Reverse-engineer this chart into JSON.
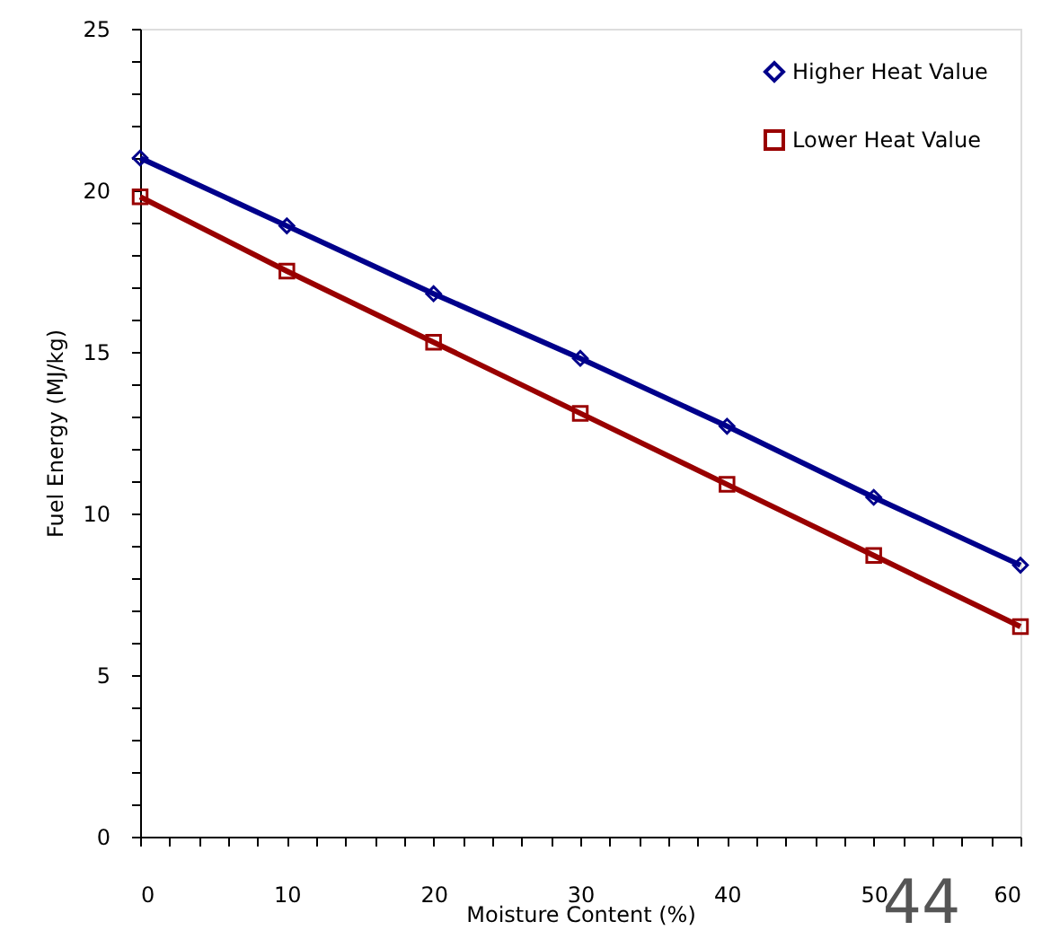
{
  "chart_data": {
    "type": "line",
    "xlabel": "Moisture Content (%)",
    "ylabel": "Fuel Energy (MJ/kg)",
    "x": [
      0,
      10,
      20,
      30,
      40,
      50,
      60
    ],
    "series": [
      {
        "name": "Higher Heat Value",
        "color": "#00008b",
        "marker": "diamond",
        "values": [
          21.0,
          18.9,
          16.8,
          14.8,
          12.7,
          10.5,
          8.4
        ]
      },
      {
        "name": "Lower Heat Value",
        "color": "#990000",
        "marker": "square",
        "values": [
          19.8,
          17.5,
          15.3,
          13.1,
          10.9,
          8.7,
          6.5
        ]
      }
    ],
    "xlim": [
      0,
      60
    ],
    "ylim": [
      0,
      25
    ],
    "xticks": [
      0,
      {
        "value": 2,
        "label": null
      },
      {
        "value": 4,
        "label": null
      },
      {
        "value": 6,
        "label": null
      },
      {
        "value": 8,
        "label": null
      },
      10,
      {
        "value": 12,
        "label": null
      },
      {
        "value": 14,
        "label": null
      },
      {
        "value": 16,
        "label": null
      },
      {
        "value": 18,
        "label": null
      },
      20,
      {
        "value": 22,
        "label": null
      },
      {
        "value": 24,
        "label": null
      },
      {
        "value": 26,
        "label": null
      },
      {
        "value": 28,
        "label": null
      },
      30,
      {
        "value": 32,
        "label": null
      },
      {
        "value": 34,
        "label": null
      },
      {
        "value": 36,
        "label": null
      },
      {
        "value": 38,
        "label": null
      },
      40,
      {
        "value": 42,
        "label": null
      },
      {
        "value": 44,
        "label": null
      },
      {
        "value": 46,
        "label": null
      },
      {
        "value": 48,
        "label": null
      },
      50,
      {
        "value": 52,
        "label": null
      },
      {
        "value": 54,
        "label": null
      },
      {
        "value": 56,
        "label": null
      },
      {
        "value": 58,
        "label": null
      },
      60
    ],
    "yticks": [
      0,
      {
        "value": 1,
        "label": null
      },
      {
        "value": 2,
        "label": null
      },
      {
        "value": 3,
        "label": null
      },
      {
        "value": 4,
        "label": null
      },
      5,
      {
        "value": 6,
        "label": null
      },
      {
        "value": 7,
        "label": null
      },
      {
        "value": 8,
        "label": null
      },
      {
        "value": 9,
        "label": null
      },
      10,
      {
        "value": 11,
        "label": null
      },
      {
        "value": 12,
        "label": null
      },
      {
        "value": 13,
        "label": null
      },
      {
        "value": 14,
        "label": null
      },
      15,
      {
        "value": 16,
        "label": null
      },
      {
        "value": 17,
        "label": null
      },
      {
        "value": 18,
        "label": null
      },
      {
        "value": 19,
        "label": null
      },
      20,
      {
        "value": 21,
        "label": null
      },
      {
        "value": 22,
        "label": null
      },
      {
        "value": 23,
        "label": null
      },
      {
        "value": 24,
        "label": null
      },
      25
    ],
    "grid": false,
    "legend": "top right",
    "line_style": "solid",
    "annotations": [
      "44"
    ]
  }
}
